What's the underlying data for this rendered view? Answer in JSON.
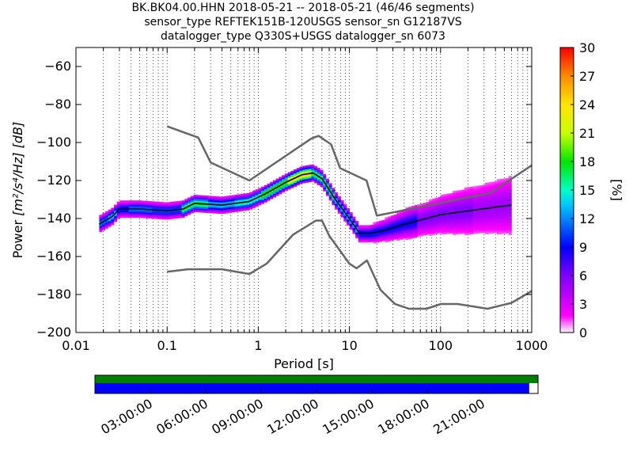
{
  "title": {
    "line1": "BK.BK04.00.HHN   2018-05-21 -- 2018-05-21  (46/46 segments)",
    "line2": "sensor_type REFTEK151B-120USGS sensor_sn G12187VS",
    "line3": "datalogger_type Q330S+USGS datalogger_sn 6073"
  },
  "chart_data": [
    {
      "type": "heatmap",
      "xlabel": "Period [s]",
      "ylabel_prefix": "Power",
      "ylabel_math": "[m²/s⁴/Hz] [dB]",
      "xscale": "log",
      "xlim": [
        0.01,
        1000
      ],
      "ylim": [
        -200,
        -50
      ],
      "x_ticks": [
        {
          "value": 0.01,
          "label": "0.01"
        },
        {
          "value": 0.1,
          "label": "0.1"
        },
        {
          "value": 1,
          "label": "1"
        },
        {
          "value": 10,
          "label": "10"
        },
        {
          "value": 100,
          "label": "100"
        },
        {
          "value": 1000,
          "label": "1000"
        }
      ],
      "y_ticks": [
        {
          "value": -60,
          "label": "−60"
        },
        {
          "value": -80,
          "label": "−80"
        },
        {
          "value": -100,
          "label": "−100"
        },
        {
          "value": -120,
          "label": "−120"
        },
        {
          "value": -140,
          "label": "−140"
        },
        {
          "value": -160,
          "label": "−160"
        },
        {
          "value": -180,
          "label": "−180"
        },
        {
          "value": -200,
          "label": "−200"
        }
      ],
      "grid": "dotted vertical lines at minor period ticks",
      "colorbar": {
        "label": "[%]",
        "range": [
          0,
          30
        ],
        "ticks": [
          {
            "value": 0,
            "label": "0"
          },
          {
            "value": 3,
            "label": "3"
          },
          {
            "value": 6,
            "label": "6"
          },
          {
            "value": 9,
            "label": "9"
          },
          {
            "value": 12,
            "label": "12"
          },
          {
            "value": 15,
            "label": "15"
          },
          {
            "value": 18,
            "label": "18"
          },
          {
            "value": 21,
            "label": "21"
          },
          {
            "value": 24,
            "label": "24"
          },
          {
            "value": 27,
            "label": "27"
          },
          {
            "value": 30,
            "label": "30"
          }
        ]
      },
      "noise_model_high": {
        "x": [
          0.1,
          0.22,
          0.3,
          0.8,
          3.8,
          4.6,
          6.3,
          7.9,
          15.4,
          20,
          354.8,
          1000
        ],
        "y": [
          -91.5,
          -97.4,
          -110.5,
          -120.0,
          -98.0,
          -96.5,
          -101.0,
          -113.5,
          -120.0,
          -138.5,
          -126.5,
          -112.0
        ]
      },
      "noise_model_low": {
        "x": [
          0.1,
          0.17,
          0.4,
          0.8,
          1.24,
          2.4,
          4.3,
          5.0,
          6.0,
          10.0,
          12.0,
          15.6,
          21.9,
          31.6,
          45.0,
          70.0,
          101.0,
          154.0,
          328.0,
          600.0,
          1000
        ],
        "y": [
          -168.0,
          -166.7,
          -166.7,
          -169.2,
          -163.7,
          -148.6,
          -141.1,
          -141.1,
          -149.0,
          -163.8,
          -166.2,
          -162.1,
          -177.5,
          -185.0,
          -187.5,
          -187.5,
          -185.0,
          -185.0,
          -187.5,
          -184.4,
          -178.2
        ]
      },
      "mode_curve": {
        "x": [
          0.018,
          0.025,
          0.03,
          0.05,
          0.1,
          0.15,
          0.2,
          0.4,
          0.8,
          1.2,
          2.0,
          3.0,
          4.0,
          5.0,
          7.0,
          10.0,
          13.0,
          17.0,
          25.0,
          40.0,
          70.0,
          100.0,
          200.0,
          400.0,
          600.0
        ],
        "y": [
          -143,
          -139,
          -135,
          -135,
          -136,
          -135,
          -132,
          -133,
          -131,
          -127,
          -121,
          -117,
          -116,
          -119,
          -130,
          -140,
          -148,
          -148,
          -146,
          -143,
          -140,
          -138,
          -136,
          -134,
          -133
        ]
      },
      "heatmap_cells": [
        {
          "x": 0.02,
          "y": -144,
          "pct": 12
        },
        {
          "x": 0.025,
          "y": -140,
          "pct": 14
        },
        {
          "x": 0.03,
          "y": -136,
          "pct": 10
        },
        {
          "x": 0.05,
          "y": -135,
          "pct": 12
        },
        {
          "x": 0.1,
          "y": -136,
          "pct": 11
        },
        {
          "x": 0.2,
          "y": -133,
          "pct": 18
        },
        {
          "x": 0.4,
          "y": -133,
          "pct": 14
        },
        {
          "x": 0.8,
          "y": -131,
          "pct": 16
        },
        {
          "x": 1.5,
          "y": -125,
          "pct": 20
        },
        {
          "x": 3.0,
          "y": -117,
          "pct": 25
        },
        {
          "x": 5.0,
          "y": -120,
          "pct": 18
        },
        {
          "x": 10.0,
          "y": -140,
          "pct": 14
        },
        {
          "x": 15.0,
          "y": -148,
          "pct": 10
        },
        {
          "x": 30.0,
          "y": -145,
          "pct": 9
        },
        {
          "x": 100.0,
          "y": -138,
          "pct": 6
        },
        {
          "x": 500.0,
          "y": -133,
          "pct": 5
        }
      ]
    },
    {
      "type": "table",
      "kind": "data-availability",
      "time_labels": [
        "03:00:00",
        "06:00:00",
        "09:00:00",
        "12:00:00",
        "15:00:00",
        "18:00:00",
        "21:00:00"
      ],
      "coverage_fraction": 0.98,
      "colors": {
        "green": "#008000",
        "blue": "#0000ff"
      }
    }
  ]
}
